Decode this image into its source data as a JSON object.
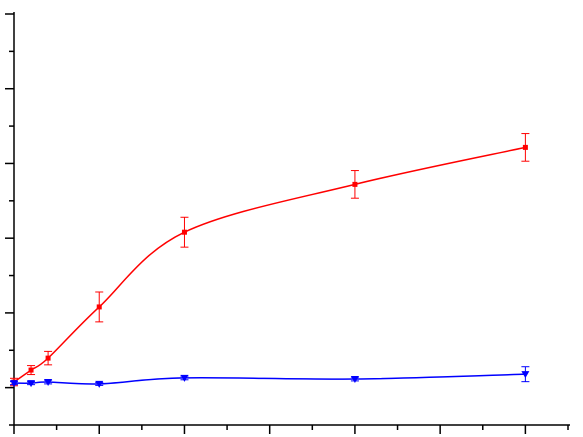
{
  "chart_data": {
    "type": "line",
    "x": [
      0,
      0.4,
      0.8,
      2,
      4,
      8,
      12
    ],
    "series": [
      {
        "color": "#ff0000",
        "marker": "square",
        "values": [
          1.15,
          1.47,
          1.79,
          3.16,
          5.16,
          6.44,
          7.43
        ],
        "errors": [
          0.1,
          0.12,
          0.18,
          0.4,
          0.4,
          0.37,
          0.37
        ]
      },
      {
        "color": "#0000ff",
        "marker": "triangle-down",
        "values": [
          1.12,
          1.12,
          1.15,
          1.1,
          1.26,
          1.23,
          1.36
        ],
        "errors": [
          0.04,
          0.04,
          0.05,
          0.04,
          0.05,
          0.05,
          0.2
        ]
      }
    ],
    "xlim": [
      0,
      13
    ],
    "ylim": [
      0,
      11
    ],
    "xticks": [
      0,
      1,
      2,
      3,
      4,
      5,
      6,
      7,
      8,
      9,
      10,
      11,
      12,
      13
    ],
    "yticks": [
      0,
      1,
      2,
      3,
      4,
      5,
      6,
      7,
      8,
      9,
      10,
      11
    ]
  }
}
